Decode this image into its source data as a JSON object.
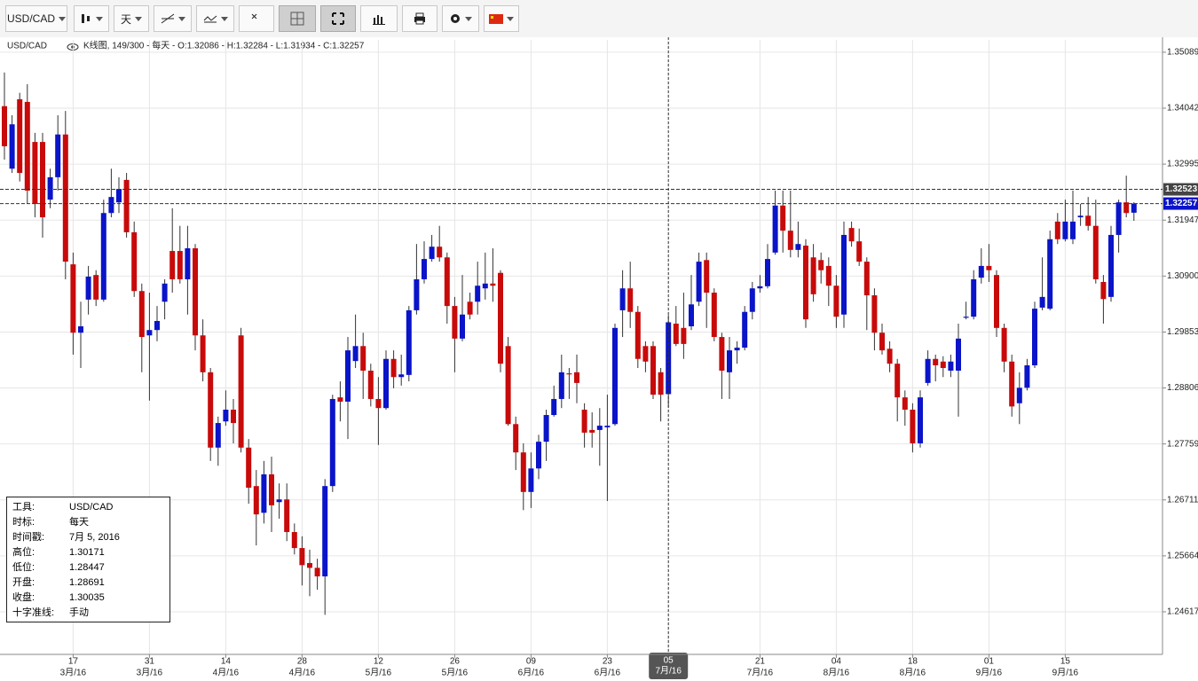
{
  "toolbar": {
    "symbol": "USD/CAD",
    "period": "天"
  },
  "legend": {
    "symbol": "USD/CAD",
    "text": "K线图, 149/300 - 每天 - O:1.32086 - H:1.32284 - L:1.31934 - C:1.32257"
  },
  "info": {
    "rows": [
      [
        "工具:",
        "USD/CAD"
      ],
      [
        "时标:",
        "每天"
      ],
      [
        "时间戳:",
        "7月 5, 2016"
      ],
      [
        "高位:",
        "1.30171"
      ],
      [
        "低位:",
        "1.28447"
      ],
      [
        "开盘:",
        "1.28691"
      ],
      [
        "收盘:",
        "1.30035"
      ],
      [
        "十字准线:",
        "手动"
      ]
    ]
  },
  "chart_data": {
    "type": "candlestick",
    "up_color": "#0a14c8",
    "down_color": "#c80a0a",
    "grid": true,
    "ylim": [
      1.2382,
      1.3532
    ],
    "yticks": [
      1.35089,
      1.34042,
      1.32995,
      1.31947,
      {
        "value": 1.309,
        "label": "1.30900"
      },
      1.29853,
      1.28806,
      1.27759,
      1.26711,
      1.25664,
      1.24617
    ],
    "xticks": [
      {
        "value": 9,
        "label": "17"
      },
      {
        "value": 19,
        "label": "31"
      },
      {
        "value": 29,
        "label": "14"
      },
      {
        "value": 39,
        "label": "28"
      },
      {
        "value": 49,
        "label": "12"
      },
      {
        "value": 59,
        "label": "26"
      },
      {
        "value": 69,
        "label": "09"
      },
      {
        "value": 79,
        "label": "23"
      },
      {
        "value": 87,
        "label": "05"
      },
      {
        "value": 99,
        "label": "21"
      },
      {
        "value": 109,
        "label": "04"
      },
      {
        "value": 119,
        "label": "18"
      },
      {
        "value": 129,
        "label": "01"
      },
      {
        "value": 139,
        "label": "15"
      }
    ],
    "xtick_months": [
      "3月/16",
      "3月/16",
      "4月/16",
      "4月/16",
      "5月/16",
      "5月/16",
      "6月/16",
      "6月/16",
      "7月/16",
      "7月/16",
      "8月/16",
      "8月/16",
      "9月/16",
      "9月/16"
    ],
    "price_lines": [
      {
        "value": 1.32523,
        "color": "#444444"
      },
      {
        "value": 1.32257,
        "color": "#0a14c8"
      }
    ],
    "open": [
      1.3408,
      1.3291,
      1.3421,
      1.3416,
      1.3341,
      1.3341,
      1.3233,
      1.3275,
      1.3355,
      1.3112,
      1.2984,
      1.3046,
      1.3092,
      1.3046,
      1.3208,
      1.3228,
      1.327,
      1.3172,
      1.3062,
      1.2979,
      1.2989,
      1.3042,
      1.3137,
      1.3137,
      1.3084,
      1.3142,
      1.2979,
      1.291,
      1.2769,
      1.2818,
      1.284,
      1.2979,
      1.2769,
      1.2697,
      1.2647,
      1.2719,
      1.2667,
      1.2672,
      1.2611,
      1.2581,
      1.2553,
      1.2544,
      1.2528,
      1.2697,
      1.2863,
      1.2855,
      1.2931,
      1.2959,
      1.2913,
      1.286,
      1.2843,
      1.2935,
      1.2901,
      1.2905,
      1.3026,
      1.3084,
      1.3122,
      1.3145,
      1.3125,
      1.3034,
      1.2973,
      1.3042,
      1.3042,
      1.3067,
      1.3076,
      1.3096,
      1.2959,
      1.2813,
      1.276,
      1.2686,
      1.273,
      1.278,
      1.283,
      1.286,
      1.2908,
      1.291,
      1.284,
      1.2802,
      1.2802,
      1.2807,
      1.2813,
      1.3026,
      1.3067,
      1.3023,
      1.2959,
      1.2959,
      1.291,
      1.28691,
      1.3001,
      1.2993,
      1.2996,
      1.3042,
      1.312,
      1.3059,
      1.2976,
      1.291,
      1.2951,
      1.2956,
      1.3023,
      1.3067,
      1.3071,
      1.3134,
      1.3222,
      1.3175,
      1.3139,
      1.3147,
      1.3125,
      1.312,
      1.3109,
      1.3072,
      1.3018,
      1.318,
      1.3155,
      1.3117,
      1.3054,
      1.2984,
      1.2954,
      1.2926,
      1.2863,
      1.284,
      1.2777,
      1.289,
      1.2935,
      1.293,
      1.2913,
      1.2913,
      1.3012,
      1.3014,
      1.3087,
      1.3109,
      1.3092,
      1.2993,
      1.293,
      1.2852,
      1.2881,
      1.2923,
      1.3031,
      1.3029,
      1.3192,
      1.3159,
      1.3159,
      1.32,
      1.3203,
      1.3184,
      1.3079,
      1.3051,
      1.3167,
      1.3228,
      1.32086
    ],
    "high": [
      1.3471,
      1.3391,
      1.3433,
      1.3449,
      1.3358,
      1.3358,
      1.3291,
      1.3391,
      1.3399,
      1.3134,
      1.3042,
      1.3109,
      1.3101,
      1.3233,
      1.3291,
      1.3275,
      1.3283,
      1.3192,
      1.3076,
      1.3059,
      1.3034,
      1.3084,
      1.3217,
      1.3184,
      1.3184,
      1.315,
      1.3009,
      1.2918,
      1.2827,
      1.2876,
      1.286,
      1.2993,
      1.2785,
      1.2727,
      1.2744,
      1.2752,
      1.2702,
      1.2702,
      1.2627,
      1.2603,
      1.2578,
      1.2561,
      1.271,
      1.2868,
      1.2893,
      1.2976,
      1.3018,
      1.2984,
      1.2926,
      1.2901,
      1.2951,
      1.2951,
      1.2943,
      1.3034,
      1.315,
      1.3155,
      1.3167,
      1.3184,
      1.3134,
      1.3051,
      1.3092,
      1.3059,
      1.3117,
      1.3134,
      1.3142,
      1.3101,
      1.2976,
      1.2827,
      1.2777,
      1.276,
      1.2793,
      1.284,
      1.2885,
      1.2943,
      1.2918,
      1.2943,
      1.2852,
      1.2835,
      1.2843,
      1.2868,
      1.3001,
      1.3101,
      1.3117,
      1.3034,
      1.2968,
      1.2968,
      1.2918,
      1.30171,
      1.3034,
      1.3059,
      1.3092,
      1.3134,
      1.3134,
      1.3067,
      1.2984,
      1.2976,
      1.2968,
      1.3034,
      1.3079,
      1.3092,
      1.315,
      1.325,
      1.325,
      1.325,
      1.3192,
      1.3159,
      1.315,
      1.3134,
      1.3125,
      1.3092,
      1.3192,
      1.3192,
      1.3179,
      1.3125,
      1.3067,
      1.3001,
      1.2968,
      1.2935,
      1.2876,
      1.2852,
      1.2876,
      1.2951,
      1.2943,
      1.294,
      1.2943,
      1.3001,
      1.3042,
      1.3101,
      1.3142,
      1.315,
      1.3101,
      1.3001,
      1.2943,
      1.291,
      1.2935,
      1.3042,
      1.3125,
      1.3175,
      1.3208,
      1.3233,
      1.325,
      1.3225,
      1.3238,
      1.3233,
      1.3092,
      1.3184,
      1.3233,
      1.3278,
      1.32284
    ],
    "low": [
      1.3308,
      1.3283,
      1.3267,
      1.3225,
      1.32,
      1.3162,
      1.3217,
      1.325,
      1.3084,
      1.2943,
      1.2918,
      1.3018,
      1.3034,
      1.3042,
      1.32,
      1.3208,
      1.3162,
      1.3051,
      1.291,
      1.2857,
      1.2968,
      1.3009,
      1.3059,
      1.3076,
      1.3018,
      1.2951,
      1.2893,
      1.2744,
      1.2735,
      1.281,
      1.2777,
      1.276,
      1.2664,
      1.2586,
      1.2627,
      1.2611,
      1.2636,
      1.2594,
      1.2569,
      1.2511,
      1.2491,
      1.2503,
      1.2456,
      1.2686,
      1.2818,
      1.2785,
      1.2918,
      1.286,
      1.2846,
      1.2774,
      1.284,
      1.288,
      1.2885,
      1.2893,
      1.3018,
      1.3076,
      1.3117,
      1.3117,
      1.3001,
      1.291,
      1.2968,
      1.3009,
      1.3018,
      1.3046,
      1.3042,
      1.291,
      1.281,
      1.2727,
      1.2652,
      1.2656,
      1.271,
      1.2744,
      1.2827,
      1.2843,
      1.286,
      1.2852,
      1.2769,
      1.2769,
      1.2735,
      1.2669,
      1.281,
      1.2976,
      1.2993,
      1.2918,
      1.291,
      1.286,
      1.2818,
      1.28447,
      1.2959,
      1.2935,
      1.2989,
      1.3034,
      1.2993,
      1.2968,
      1.286,
      1.286,
      1.2926,
      1.2951,
      1.3009,
      1.3059,
      1.3067,
      1.313,
      1.3134,
      1.3125,
      1.3125,
      1.2993,
      1.3042,
      1.3076,
      1.3034,
      1.2993,
      1.2993,
      1.3145,
      1.3109,
      1.2989,
      1.2951,
      1.2943,
      1.291,
      1.2818,
      1.281,
      1.276,
      1.2769,
      1.2885,
      1.2893,
      1.2901,
      1.2901,
      1.2827,
      1.3009,
      1.3009,
      1.3076,
      1.3079,
      1.2976,
      1.291,
      1.2827,
      1.2813,
      1.2876,
      1.2918,
      1.3026,
      1.3026,
      1.315,
      1.3155,
      1.315,
      1.3184,
      1.3175,
      1.3076,
      1.3001,
      1.3042,
      1.3134,
      1.32,
      1.31934
    ],
    "close": [
      1.3333,
      1.3374,
      1.3283,
      1.325,
      1.3225,
      1.32,
      1.3275,
      1.3355,
      1.3117,
      1.2984,
      1.2996,
      1.3089,
      1.3046,
      1.3208,
      1.3238,
      1.3253,
      1.3172,
      1.3062,
      1.2976,
      1.2989,
      1.3006,
      1.3076,
      1.3084,
      1.3084,
      1.3142,
      1.2979,
      1.291,
      1.2769,
      1.2815,
      1.284,
      1.2815,
      1.2769,
      1.2694,
      1.2644,
      1.2719,
      1.2661,
      1.2672,
      1.2611,
      1.2581,
      1.2549,
      1.2544,
      1.2528,
      1.2697,
      1.286,
      1.2855,
      1.2951,
      1.2959,
      1.2913,
      1.286,
      1.2843,
      1.2935,
      1.2901,
      1.2906,
      1.3026,
      1.3084,
      1.3122,
      1.3145,
      1.3125,
      1.3034,
      1.2973,
      1.3018,
      1.3018,
      1.3072,
      1.3076,
      1.3072,
      1.2926,
      1.2813,
      1.276,
      1.2686,
      1.273,
      1.278,
      1.283,
      1.286,
      1.291,
      1.2906,
      1.289,
      1.2797,
      1.2797,
      1.281,
      1.281,
      1.2993,
      1.3067,
      1.3023,
      1.2935,
      1.293,
      1.2868,
      1.2868,
      1.30035,
      1.2963,
      1.2963,
      1.3037,
      1.3117,
      1.3059,
      1.2976,
      1.2913,
      1.2951,
      1.2956,
      1.3023,
      1.3067,
      1.3071,
      1.3122,
      1.3222,
      1.3175,
      1.3139,
      1.315,
      1.3009,
      1.3056,
      1.3101,
      1.3072,
      1.3014,
      1.3167,
      1.3155,
      1.3117,
      1.3054,
      1.2984,
      1.2951,
      1.2926,
      1.2863,
      1.284,
      1.2777,
      1.2863,
      1.2935,
      1.2923,
      1.2918,
      1.293,
      1.2973,
      1.3014,
      1.3084,
      1.3109,
      1.3101,
      1.2993,
      1.293,
      1.2846,
      1.2881,
      1.2923,
      1.3029,
      1.3051,
      1.3159,
      1.3159,
      1.3192,
      1.3192,
      1.3203,
      1.3184,
      1.3084,
      1.3047,
      1.3167,
      1.3228,
      1.3208,
      1.32257
    ]
  }
}
